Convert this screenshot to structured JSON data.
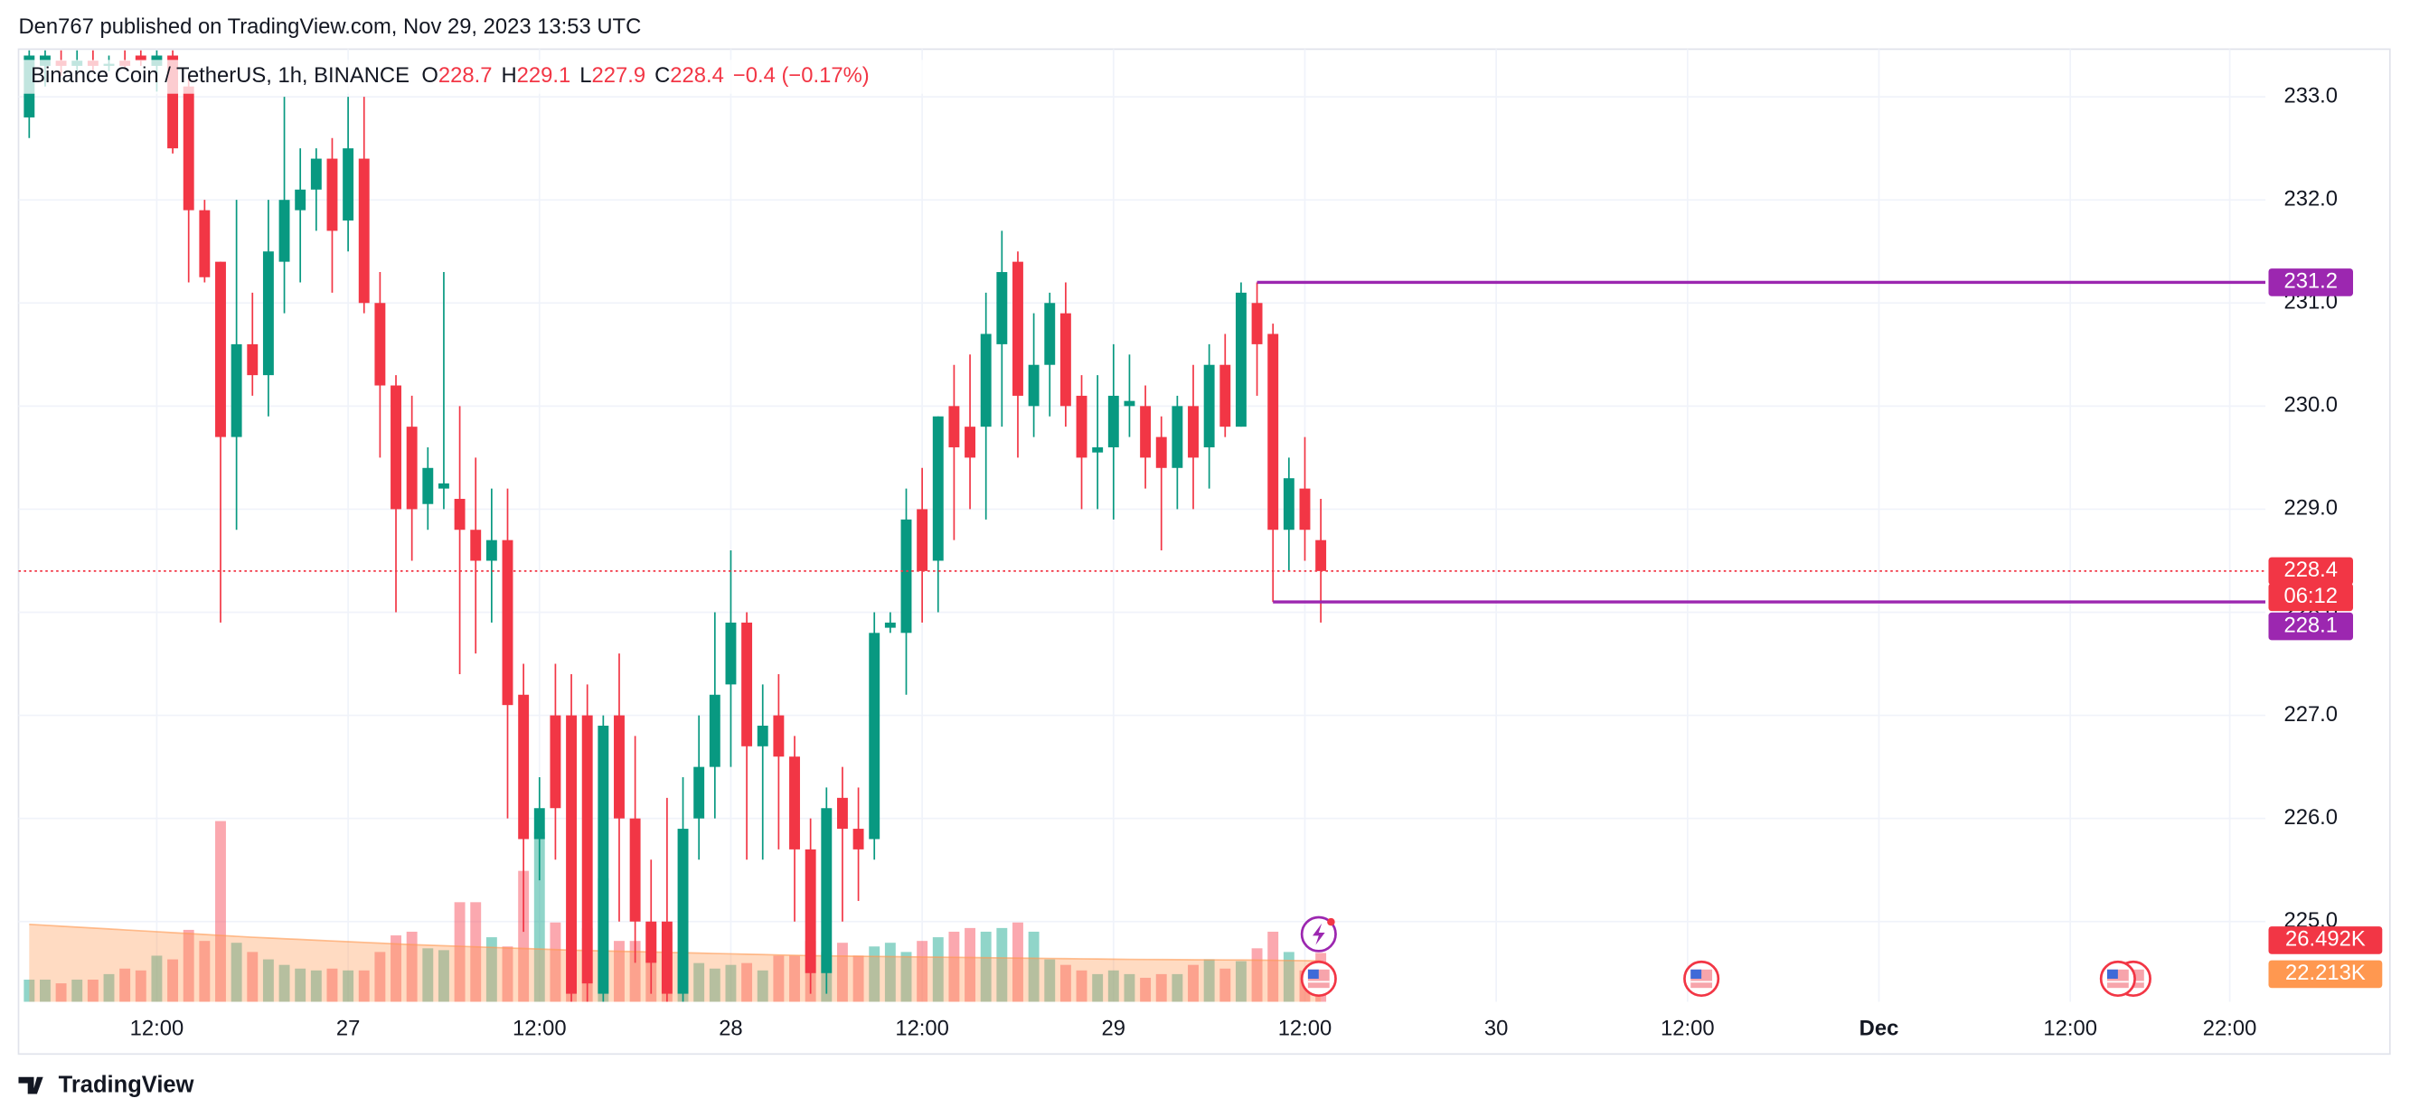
{
  "header": "Den767 published on TradingView.com, Nov 29, 2023 13:53 UTC",
  "footer": {
    "brand": "TradingView"
  },
  "chart_data": {
    "type": "candlestick",
    "title": "Binance Coin / TetherUS, 1h, BINANCE",
    "legend_labels": [
      "O",
      "H",
      "L",
      "C"
    ],
    "change_label": "−0.4 (−0.17%)",
    "countdown": "06:12",
    "up_color": "#089981",
    "down_color": "#f23645",
    "grid": true,
    "open": [
      232.8,
      233.3,
      233.35,
      233.3,
      233.35,
      233.3,
      233.35,
      233.4,
      233.3,
      233.4,
      233.1,
      231.9,
      231.4,
      229.7,
      230.6,
      230.3,
      231.4,
      231.9,
      232.1,
      232.4,
      231.8,
      232.4,
      231.0,
      230.2,
      229.8,
      229.05,
      229.2,
      229.1,
      228.8,
      228.5,
      228.7,
      227.2,
      225.8,
      227.0,
      227.0,
      227.0,
      224.3,
      227.0,
      226.0,
      225.0,
      225.0,
      224.3,
      226.0,
      226.5,
      227.3,
      227.9,
      226.7,
      227.0,
      226.6,
      225.7,
      224.5,
      226.2,
      225.9,
      225.8,
      227.85,
      227.8,
      229.0,
      228.5,
      230.0,
      229.8,
      229.8,
      230.6,
      231.4,
      230.0,
      230.4,
      230.9,
      230.1,
      229.55,
      229.6,
      230.0,
      230.0,
      229.7,
      229.4,
      230.0,
      229.6,
      230.4,
      229.8,
      231.0,
      230.7,
      228.8,
      229.2,
      228.7
    ],
    "high": [
      233.45,
      233.45,
      233.45,
      233.45,
      233.45,
      233.4,
      233.45,
      233.45,
      233.45,
      233.45,
      233.2,
      232.0,
      231.4,
      232.0,
      231.1,
      232.0,
      233.0,
      232.5,
      232.5,
      232.6,
      233.0,
      233.0,
      231.3,
      230.3,
      230.1,
      229.6,
      231.3,
      230.0,
      229.5,
      229.2,
      229.2,
      227.5,
      226.4,
      227.5,
      227.4,
      227.3,
      227.0,
      227.6,
      226.8,
      225.6,
      226.2,
      226.4,
      227.0,
      228.0,
      228.6,
      228.0,
      227.3,
      227.4,
      226.8,
      226.0,
      226.3,
      226.5,
      226.3,
      228.0,
      228.0,
      229.2,
      229.4,
      229.9,
      230.4,
      230.5,
      231.1,
      231.7,
      231.5,
      230.9,
      231.1,
      231.2,
      230.3,
      230.3,
      230.6,
      230.5,
      230.2,
      229.9,
      230.1,
      230.4,
      230.6,
      230.7,
      231.2,
      231.2,
      230.8,
      229.5,
      229.7,
      229.1
    ],
    "low": [
      232.6,
      233.1,
      233.2,
      233.25,
      233.25,
      233.25,
      233.28,
      233.3,
      233.05,
      232.45,
      231.2,
      231.2,
      227.9,
      228.8,
      230.1,
      229.9,
      230.9,
      231.2,
      231.7,
      231.1,
      231.5,
      230.9,
      229.5,
      228.0,
      228.5,
      228.8,
      229.0,
      227.4,
      227.6,
      227.9,
      226.0,
      224.9,
      225.4,
      225.6,
      224.2,
      224.2,
      224.2,
      225.0,
      224.6,
      224.3,
      224.2,
      224.2,
      225.6,
      226.0,
      226.5,
      225.6,
      225.6,
      225.7,
      225.0,
      224.3,
      224.3,
      225.0,
      225.2,
      225.6,
      227.8,
      227.2,
      227.9,
      228.0,
      228.7,
      229.0,
      228.9,
      229.8,
      229.5,
      229.7,
      229.9,
      229.8,
      229.0,
      229.0,
      228.9,
      229.7,
      229.2,
      228.6,
      229.0,
      229.0,
      229.2,
      229.7,
      229.8,
      230.1,
      228.1,
      228.4,
      228.5,
      227.9
    ],
    "close": [
      233.4,
      233.4,
      233.3,
      233.35,
      233.3,
      233.32,
      233.3,
      233.35,
      233.4,
      232.5,
      231.9,
      231.25,
      229.7,
      230.6,
      230.3,
      231.5,
      232.0,
      232.1,
      232.4,
      231.7,
      232.5,
      231.0,
      230.2,
      229.0,
      229.0,
      229.4,
      229.25,
      228.8,
      228.5,
      228.7,
      227.1,
      225.8,
      226.1,
      226.1,
      224.3,
      224.4,
      226.9,
      226.0,
      225.0,
      224.6,
      224.3,
      225.9,
      226.5,
      227.2,
      227.9,
      226.7,
      226.9,
      226.6,
      225.7,
      224.5,
      226.1,
      225.9,
      225.7,
      227.8,
      227.9,
      228.9,
      228.4,
      229.9,
      229.6,
      229.5,
      230.7,
      231.3,
      230.1,
      230.4,
      231.0,
      230.0,
      229.5,
      229.6,
      230.1,
      230.05,
      229.5,
      229.4,
      230.0,
      229.5,
      230.4,
      229.8,
      231.1,
      230.6,
      228.8,
      229.3,
      228.8,
      228.4
    ],
    "volume": {
      "values": [
        12,
        12,
        10,
        12,
        12,
        15,
        18,
        17,
        25,
        23,
        39,
        33,
        98,
        32,
        27,
        23,
        20,
        18,
        17,
        18,
        17,
        17,
        27,
        36,
        38,
        29,
        28,
        54,
        54,
        35,
        30,
        71,
        92,
        43,
        43,
        40,
        67,
        33,
        33,
        42,
        38,
        25,
        21,
        18,
        20,
        21,
        17,
        25,
        25,
        33,
        27,
        32,
        25,
        30,
        32,
        27,
        33,
        35,
        38,
        40,
        38,
        40,
        43,
        38,
        23,
        20,
        17,
        15,
        17,
        15,
        13,
        15,
        15,
        20,
        23,
        18,
        22,
        29,
        38,
        27,
        17,
        26.492
      ],
      "value_labels": [
        null,
        null,
        null,
        null,
        null,
        null,
        null,
        null,
        null,
        null,
        null,
        null,
        null,
        null,
        null,
        null,
        null,
        null,
        null,
        null,
        null,
        null,
        null,
        null,
        null,
        null,
        null,
        null,
        null,
        null,
        null,
        null,
        null,
        null,
        null,
        null,
        null,
        null,
        null,
        null,
        null,
        null,
        null,
        null,
        null,
        null,
        null,
        null,
        null,
        null,
        null,
        null,
        null,
        null,
        null,
        null,
        null,
        null,
        null,
        null,
        null,
        null,
        null,
        null,
        null,
        null,
        null,
        null,
        null,
        null,
        null,
        null,
        null,
        null,
        null,
        null,
        null,
        null,
        null,
        null,
        null,
        "26.492K"
      ],
      "up_color": "rgba(34,171,148,0.5)",
      "down_color": "rgba(247,82,95,0.5)",
      "label_color": "#f23645"
    },
    "volume_ma": {
      "values": [
        42,
        41.5,
        41,
        40.5,
        40,
        39.5,
        39,
        38.5,
        38,
        37.5,
        37,
        36.5,
        36,
        35.5,
        35,
        34.6,
        34.2,
        33.8,
        33.4,
        33,
        32.6,
        32.2,
        31.8,
        31.4,
        31,
        30.7,
        30.4,
        30.1,
        29.8,
        29.5,
        29.2,
        28.9,
        28.6,
        28.3,
        28,
        27.8,
        27.6,
        27.4,
        27.2,
        27,
        26.8,
        26.6,
        26.4,
        26.2,
        26,
        25.8,
        25.6,
        25.4,
        25.2,
        25,
        24.9,
        24.8,
        24.7,
        24.6,
        24.5,
        24.4,
        24.3,
        24.2,
        24.1,
        24,
        23.9,
        23.8,
        23.7,
        23.6,
        23.5,
        23.4,
        23.3,
        23.2,
        23.1,
        23,
        22.95,
        22.9,
        22.85,
        22.8,
        22.75,
        22.7,
        22.65,
        22.6,
        22.5,
        22.4,
        22.3,
        22.213
      ],
      "value_labels": [
        null,
        null,
        null,
        null,
        null,
        null,
        null,
        null,
        null,
        null,
        null,
        null,
        null,
        null,
        null,
        null,
        null,
        null,
        null,
        null,
        null,
        null,
        null,
        null,
        null,
        null,
        null,
        null,
        null,
        null,
        null,
        null,
        null,
        null,
        null,
        null,
        null,
        null,
        null,
        null,
        null,
        null,
        null,
        null,
        null,
        null,
        null,
        null,
        null,
        null,
        null,
        null,
        null,
        null,
        null,
        null,
        null,
        null,
        null,
        null,
        null,
        null,
        null,
        null,
        null,
        null,
        null,
        null,
        null,
        null,
        null,
        null,
        null,
        null,
        null,
        null,
        null,
        null,
        null,
        null,
        null,
        "22.213K"
      ],
      "color": "#ff9850"
    },
    "volume_lim": [
      0,
      150
    ],
    "levels": [
      {
        "value": 231.2,
        "start": 77,
        "color": "#9c27b0"
      },
      {
        "value": 228.1,
        "start": 78,
        "color": "#9c27b0"
      }
    ],
    "ylim": [
      224.222,
      233.462
    ],
    "yticks": [
      {
        "value": 225,
        "label": "225.0"
      },
      {
        "value": 226,
        "label": "226.0"
      },
      {
        "value": 227,
        "label": "227.0"
      },
      {
        "value": 228,
        "label": "228.0"
      },
      {
        "value": 229,
        "label": "229.0"
      },
      {
        "value": 230,
        "label": "230.0"
      },
      {
        "value": 231,
        "label": "231.0"
      },
      {
        "value": 232,
        "label": "232.0"
      },
      {
        "value": 233,
        "label": "233.0"
      }
    ],
    "xlim": [
      -0.67,
      140.24
    ],
    "xticks": [
      {
        "value": 8,
        "label": "12:00"
      },
      {
        "value": 20,
        "label": "27"
      },
      {
        "value": 32,
        "label": "12:00"
      },
      {
        "value": 44,
        "label": "28"
      },
      {
        "value": 56,
        "label": "12:00"
      },
      {
        "value": 68,
        "label": "29"
      },
      {
        "value": 80,
        "label": "12:00"
      },
      {
        "value": 92,
        "label": "30"
      },
      {
        "value": 104,
        "label": "12:00"
      },
      {
        "value": 116,
        "label": "Dec"
      },
      {
        "value": 128,
        "label": "12:00"
      },
      {
        "value": 138,
        "label": "22:00"
      }
    ]
  }
}
